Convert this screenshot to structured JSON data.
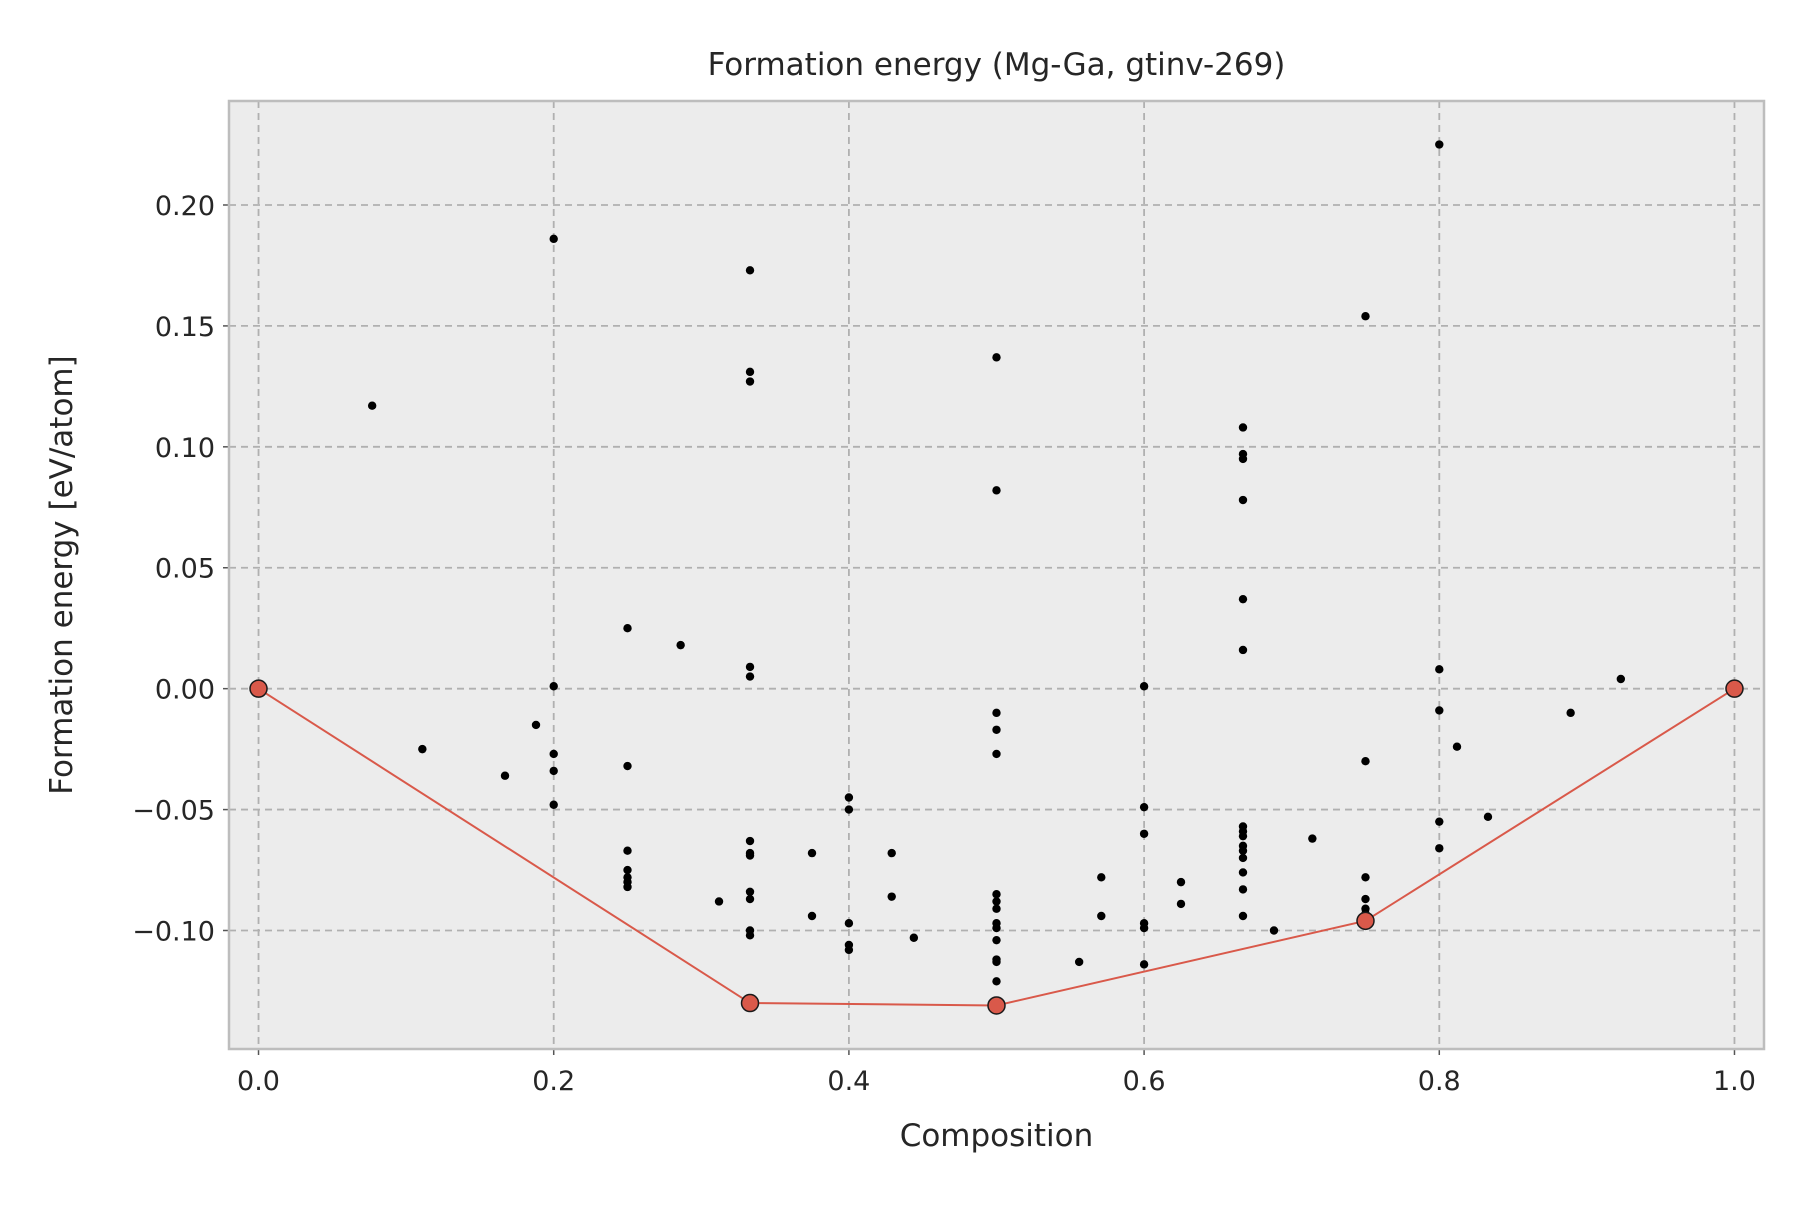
{
  "chart_data": {
    "type": "scatter",
    "title": "Formation energy (Mg-Ga, gtinv-269)",
    "xlabel": "Composition",
    "ylabel": "Formation energy [eV/atom]",
    "xlim": [
      -0.02,
      1.02
    ],
    "ylim": [
      -0.149,
      0.243
    ],
    "grid": true,
    "x_ticks": [
      {
        "value": 0.0,
        "label": "0.0"
      },
      {
        "value": 0.2,
        "label": "0.2"
      },
      {
        "value": 0.4,
        "label": "0.4"
      },
      {
        "value": 0.6,
        "label": "0.6"
      },
      {
        "value": 0.8,
        "label": "0.8"
      },
      {
        "value": 1.0,
        "label": "1.0"
      }
    ],
    "y_ticks": [
      {
        "value": 0.2,
        "label": "0.20"
      },
      {
        "value": 0.15,
        "label": "0.15"
      },
      {
        "value": 0.1,
        "label": "0.10"
      },
      {
        "value": 0.05,
        "label": "0.05"
      },
      {
        "value": 0.0,
        "label": "0.00"
      },
      {
        "value": -0.05,
        "label": "−0.05"
      },
      {
        "value": -0.1,
        "label": "−0.10"
      }
    ],
    "colors": {
      "points": "#000000",
      "hull": "#d9594a"
    },
    "series": [
      {
        "kind": "points",
        "points": [
          [
            0.077,
            0.117
          ],
          [
            0.111,
            -0.025
          ],
          [
            0.167,
            -0.036
          ],
          [
            0.188,
            -0.015
          ],
          [
            0.2,
            0.186
          ],
          [
            0.2,
            0.001
          ],
          [
            0.2,
            -0.027
          ],
          [
            0.2,
            -0.034
          ],
          [
            0.2,
            -0.048
          ],
          [
            0.25,
            0.025
          ],
          [
            0.25,
            -0.032
          ],
          [
            0.25,
            -0.067
          ],
          [
            0.25,
            -0.075
          ],
          [
            0.25,
            -0.078
          ],
          [
            0.25,
            -0.08
          ],
          [
            0.25,
            -0.082
          ],
          [
            0.286,
            0.018
          ],
          [
            0.312,
            -0.088
          ],
          [
            0.333,
            0.173
          ],
          [
            0.333,
            0.131
          ],
          [
            0.333,
            0.127
          ],
          [
            0.333,
            0.009
          ],
          [
            0.333,
            0.005
          ],
          [
            0.333,
            -0.063
          ],
          [
            0.333,
            -0.068
          ],
          [
            0.333,
            -0.069
          ],
          [
            0.333,
            -0.084
          ],
          [
            0.333,
            -0.087
          ],
          [
            0.333,
            -0.1
          ],
          [
            0.333,
            -0.102
          ],
          [
            0.375,
            -0.068
          ],
          [
            0.375,
            -0.094
          ],
          [
            0.4,
            -0.045
          ],
          [
            0.4,
            -0.05
          ],
          [
            0.4,
            -0.097
          ],
          [
            0.4,
            -0.106
          ],
          [
            0.4,
            -0.108
          ],
          [
            0.429,
            -0.068
          ],
          [
            0.429,
            -0.086
          ],
          [
            0.444,
            -0.103
          ],
          [
            0.5,
            0.137
          ],
          [
            0.5,
            0.082
          ],
          [
            0.5,
            -0.01
          ],
          [
            0.5,
            -0.017
          ],
          [
            0.5,
            -0.027
          ],
          [
            0.5,
            -0.085
          ],
          [
            0.5,
            -0.088
          ],
          [
            0.5,
            -0.091
          ],
          [
            0.5,
            -0.097
          ],
          [
            0.5,
            -0.099
          ],
          [
            0.5,
            -0.104
          ],
          [
            0.5,
            -0.112
          ],
          [
            0.5,
            -0.113
          ],
          [
            0.5,
            -0.121
          ],
          [
            0.556,
            -0.113
          ],
          [
            0.571,
            -0.078
          ],
          [
            0.571,
            -0.094
          ],
          [
            0.6,
            0.001
          ],
          [
            0.6,
            -0.049
          ],
          [
            0.6,
            -0.06
          ],
          [
            0.6,
            -0.097
          ],
          [
            0.6,
            -0.099
          ],
          [
            0.6,
            -0.114
          ],
          [
            0.625,
            -0.08
          ],
          [
            0.625,
            -0.089
          ],
          [
            0.667,
            0.108
          ],
          [
            0.667,
            0.097
          ],
          [
            0.667,
            0.095
          ],
          [
            0.667,
            0.078
          ],
          [
            0.667,
            0.037
          ],
          [
            0.667,
            0.016
          ],
          [
            0.667,
            -0.057
          ],
          [
            0.667,
            -0.059
          ],
          [
            0.667,
            -0.061
          ],
          [
            0.667,
            -0.065
          ],
          [
            0.667,
            -0.067
          ],
          [
            0.667,
            -0.07
          ],
          [
            0.667,
            -0.076
          ],
          [
            0.667,
            -0.083
          ],
          [
            0.667,
            -0.094
          ],
          [
            0.688,
            -0.1
          ],
          [
            0.714,
            -0.062
          ],
          [
            0.75,
            0.154
          ],
          [
            0.75,
            -0.03
          ],
          [
            0.75,
            -0.078
          ],
          [
            0.75,
            -0.087
          ],
          [
            0.75,
            -0.091
          ],
          [
            0.75,
            -0.093
          ],
          [
            0.8,
            0.225
          ],
          [
            0.8,
            0.008
          ],
          [
            0.8,
            -0.009
          ],
          [
            0.8,
            -0.055
          ],
          [
            0.8,
            -0.066
          ],
          [
            0.812,
            -0.024
          ],
          [
            0.833,
            -0.053
          ],
          [
            0.889,
            -0.01
          ],
          [
            0.923,
            0.004
          ]
        ]
      },
      {
        "kind": "convex-hull",
        "points": [
          [
            0.0,
            0.0
          ],
          [
            0.333,
            -0.13
          ],
          [
            0.5,
            -0.131
          ],
          [
            0.75,
            -0.096
          ],
          [
            1.0,
            0.0
          ]
        ]
      }
    ]
  }
}
